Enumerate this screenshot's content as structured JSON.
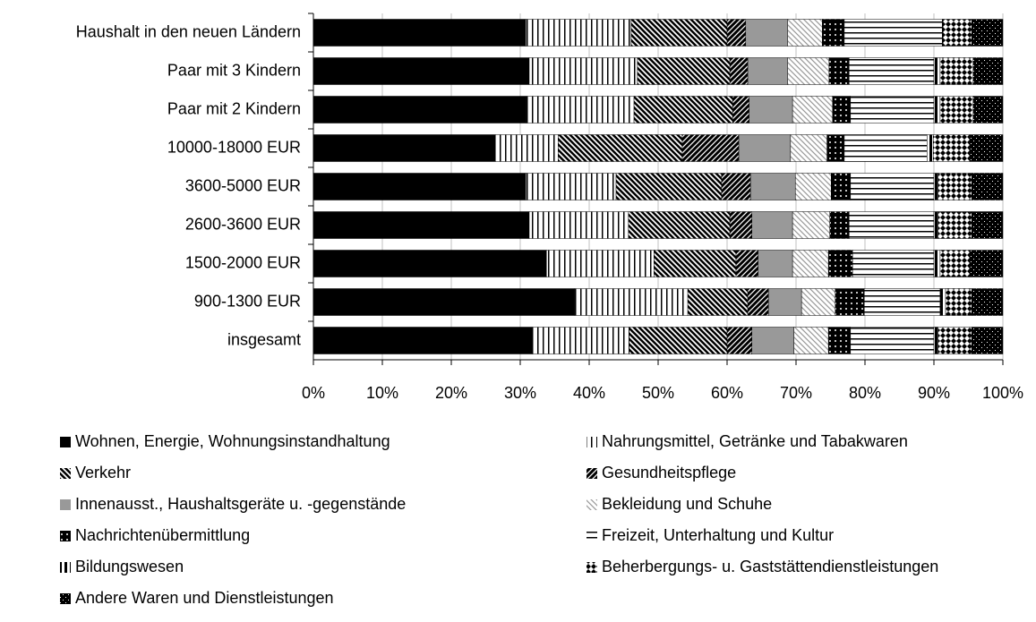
{
  "chart_data": {
    "type": "stacked_barh",
    "categories": [
      "Haushalt in den neuen Ländern",
      "Paar mit 3 Kindern",
      "Paar mit 2 Kindern",
      "10000-18000 EUR",
      "3600-5000 EUR",
      "2600-3600 EUR",
      "1500-2000 EUR",
      "900-1300 EUR",
      "insgesamt"
    ],
    "series": [
      {
        "name": "Wohnen, Energie, Wohnungsinstandhaltung",
        "color": "#000000",
        "values": [
          30.8,
          31.3,
          30.9,
          26.4,
          30.8,
          31.3,
          33.8,
          37.9,
          31.8
        ]
      },
      {
        "name": "Nahrungsmittel, Getränke und Tabakwaren",
        "color": "#000000",
        "values": [
          15.3,
          15.7,
          15.6,
          9.1,
          13.1,
          14.4,
          15.6,
          16.4,
          14.0
        ]
      },
      {
        "name": "Verkehr",
        "color": "#000000",
        "values": [
          13.9,
          13.4,
          14.3,
          18.0,
          15.3,
          14.7,
          11.9,
          8.7,
          14.2
        ]
      },
      {
        "name": "Gesundheitspflege",
        "color": "#000000",
        "values": [
          2.7,
          2.6,
          2.4,
          8.2,
          4.2,
          3.2,
          3.2,
          3.0,
          3.6
        ]
      },
      {
        "name": "Innenausst., Haushaltsgeräte u. -gegenstände",
        "color": "#999999",
        "values": [
          6.1,
          5.8,
          6.3,
          7.5,
          6.5,
          5.9,
          5.0,
          4.8,
          6.1
        ]
      },
      {
        "name": "Bekleidung und Schuhe",
        "color": "#999999",
        "values": [
          5.0,
          6.0,
          5.8,
          5.3,
          5.2,
          5.4,
          5.2,
          4.9,
          5.0
        ]
      },
      {
        "name": "Nachrichtenübermittlung",
        "color": "#000000",
        "values": [
          3.2,
          2.9,
          2.6,
          2.5,
          2.8,
          2.8,
          3.5,
          4.2,
          3.2
        ]
      },
      {
        "name": "Freizeit, Unterhaltung und Kultur",
        "color": "#000000",
        "values": [
          14.2,
          12.3,
          12.1,
          12.0,
          12.1,
          12.3,
          11.8,
          11.0,
          12.1
        ]
      },
      {
        "name": "Bildungswesen",
        "color": "#000000",
        "values": [
          0.1,
          0.9,
          0.9,
          0.9,
          0.6,
          0.6,
          0.9,
          0.8,
          0.6
        ]
      },
      {
        "name": "Beherbergungs- u. Gaststättendienstleistungen",
        "color": "#000000",
        "values": [
          4.2,
          4.8,
          4.8,
          5.3,
          4.9,
          4.9,
          4.3,
          3.8,
          4.9
        ]
      },
      {
        "name": "Andere Waren und Dienstleistungen",
        "color": "#000000",
        "values": [
          4.5,
          4.3,
          4.3,
          4.8,
          4.5,
          4.5,
          4.8,
          4.5,
          4.5
        ]
      }
    ],
    "xlim": [
      0,
      100
    ],
    "xticks": [
      {
        "value": 0,
        "label": "0%"
      },
      {
        "value": 10,
        "label": "10%"
      },
      {
        "value": 20,
        "label": "20%"
      },
      {
        "value": 30,
        "label": "30%"
      },
      {
        "value": 40,
        "label": "40%"
      },
      {
        "value": 50,
        "label": "50%"
      },
      {
        "value": 60,
        "label": "60%"
      },
      {
        "value": 70,
        "label": "70%"
      },
      {
        "value": 80,
        "label": "80%"
      },
      {
        "value": 90,
        "label": "90%"
      },
      {
        "value": 100,
        "label": "100%"
      }
    ],
    "grid": true
  }
}
